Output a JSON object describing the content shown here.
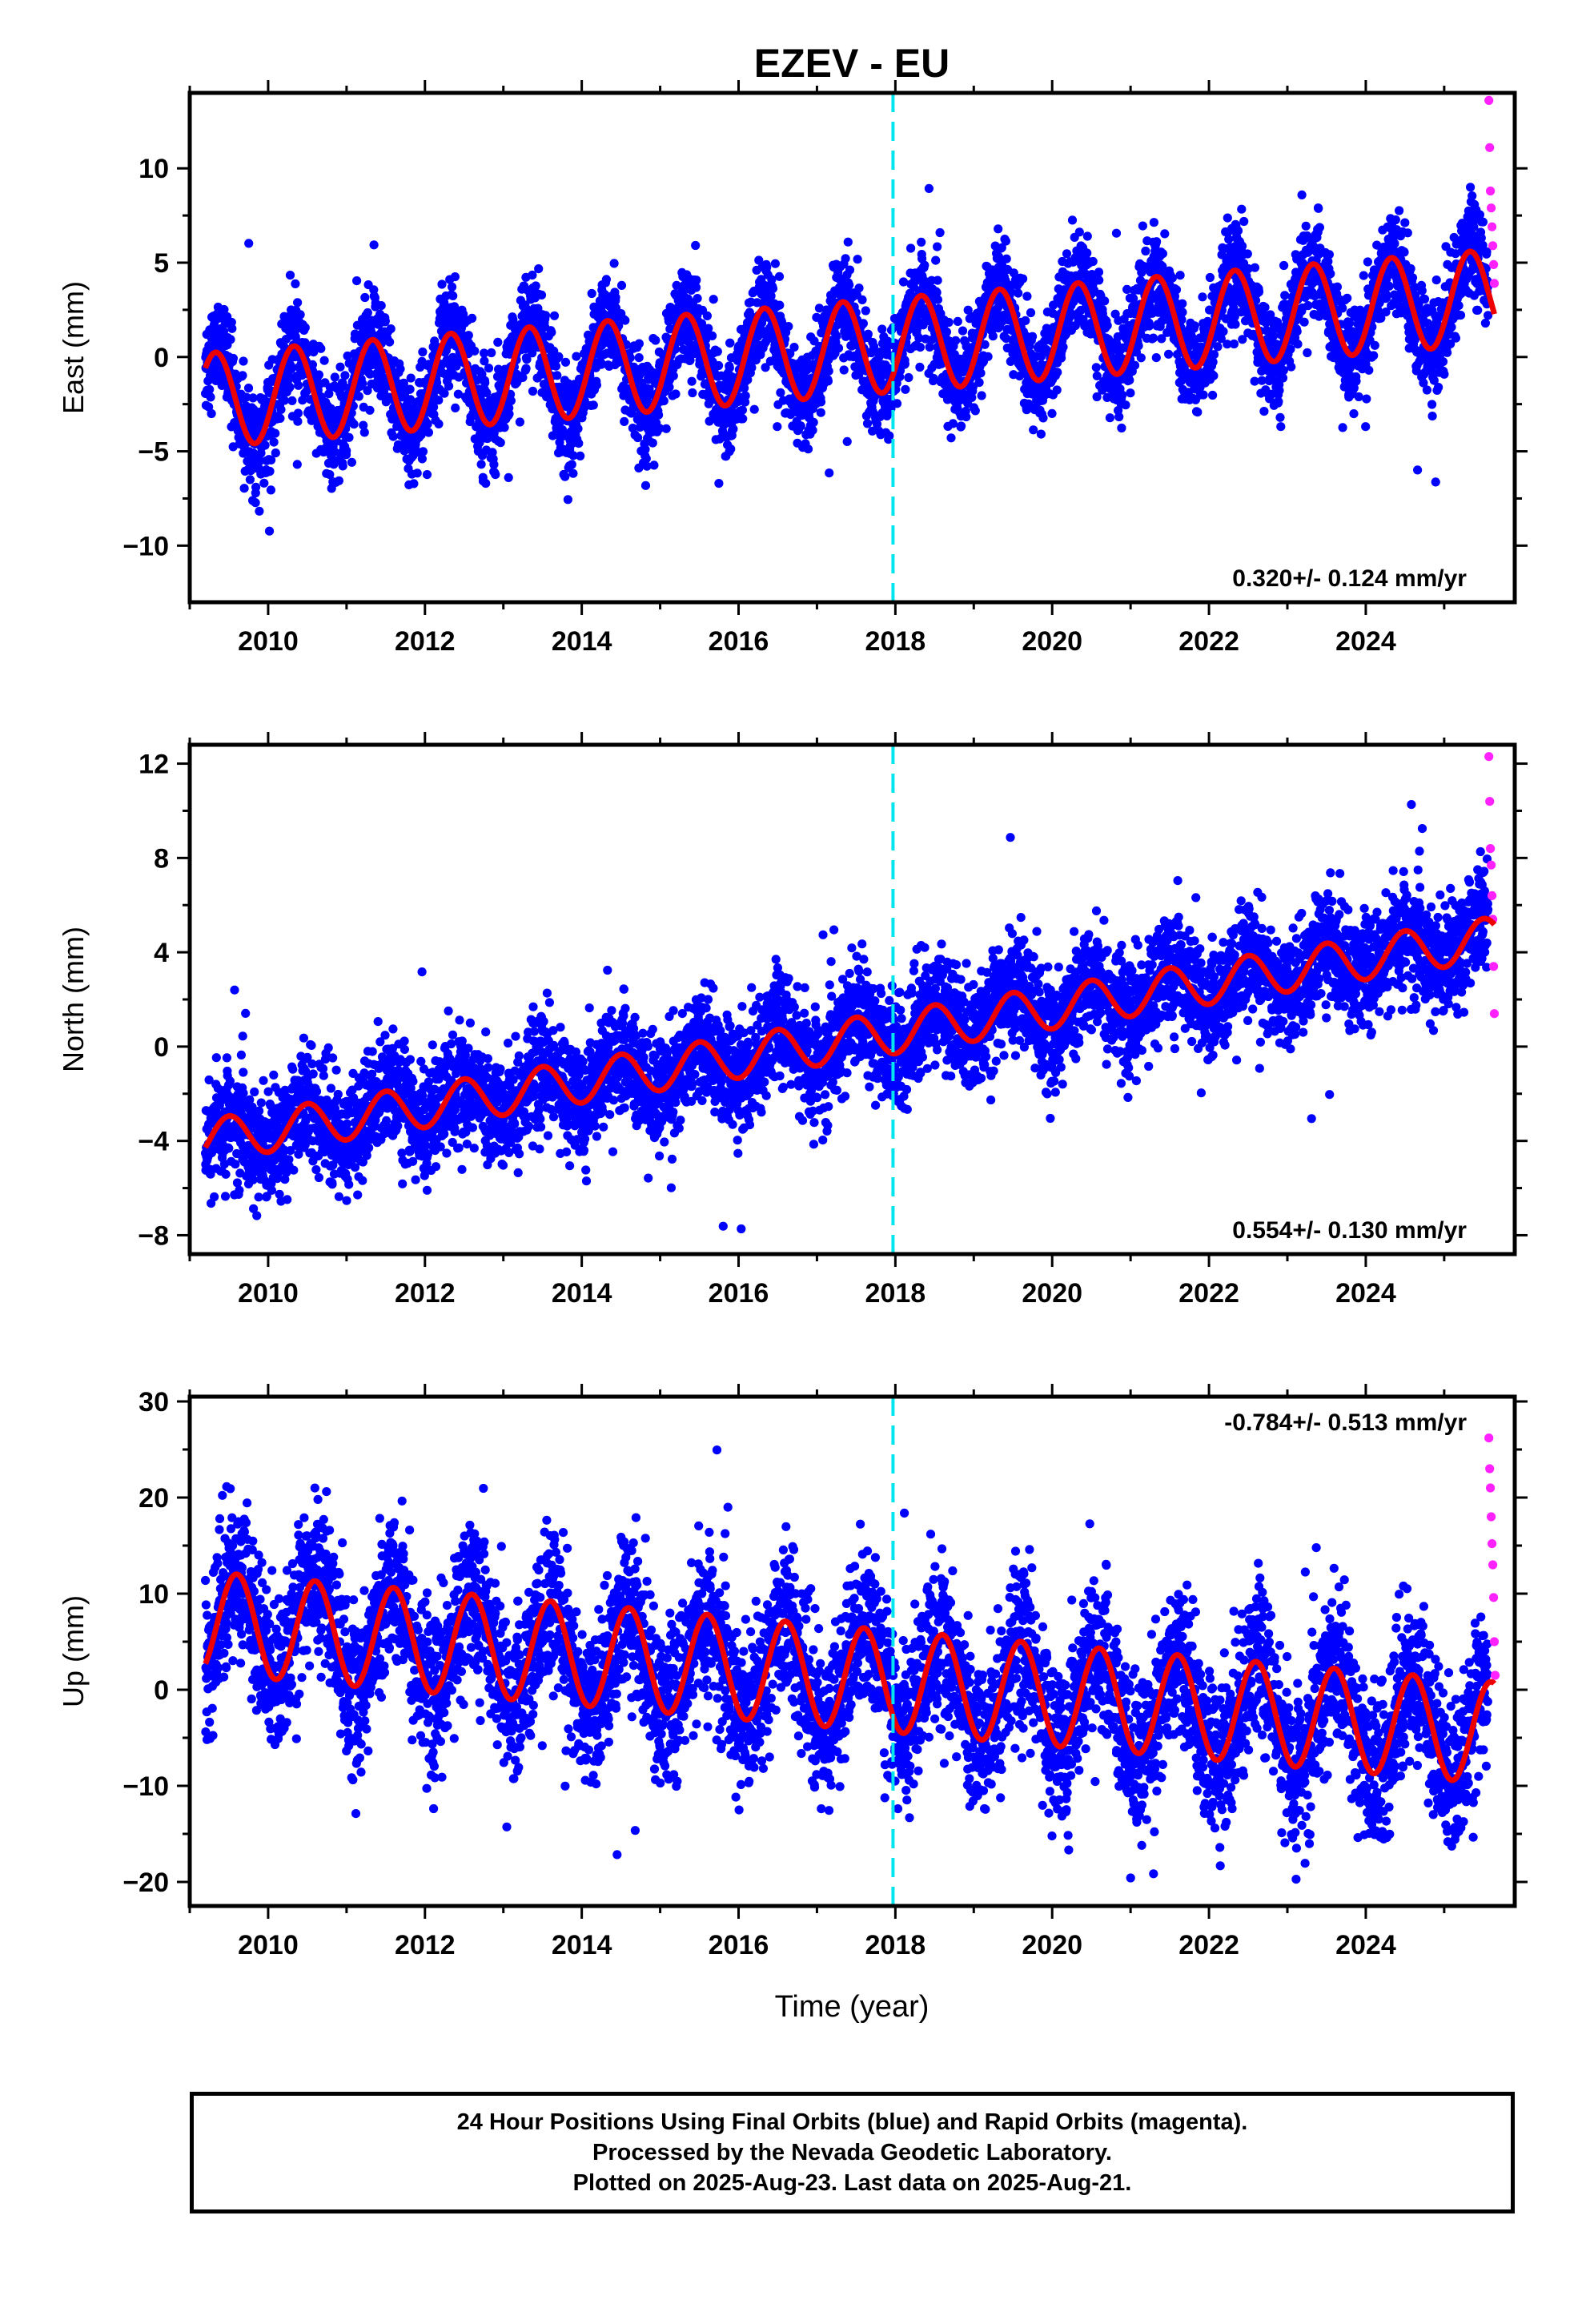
{
  "figure": {
    "title": "EZEV - EU",
    "caption_lines": [
      "24 Hour Positions Using Final Orbits (blue) and Rapid Orbits (magenta).",
      "Processed by the Nevada Geodetic Laboratory.",
      "Plotted on 2025-Aug-23. Last data on 2025-Aug-21."
    ],
    "xlabel": "Time (year)",
    "colors": {
      "final": "#0000ff",
      "rapid": "#ff22ff",
      "model": "#ee0000",
      "event": "#00e5ee"
    }
  },
  "chart_data": [
    {
      "type": "scatter",
      "name": "east",
      "ylabel": "East (mm)",
      "xlim": [
        2009.0,
        2025.9
      ],
      "ylim": [
        -13,
        14
      ],
      "yticks": [
        -10,
        -5,
        0,
        5,
        10
      ],
      "ytick_labels": [
        "−10",
        "−5",
        "0",
        "5",
        "10"
      ],
      "xticks": [
        2010,
        2012,
        2014,
        2016,
        2018,
        2020,
        2022,
        2024
      ],
      "xtick_labels": [
        "2010",
        "2012",
        "2014",
        "2016",
        "2018",
        "2020",
        "2022",
        "2024"
      ],
      "rate_label": "0.320+/- 0.124 mm/yr",
      "rate_position": "bottom-right",
      "event_line_x": 2017.97,
      "series": {
        "final_orbits": {
          "x_start": 2009.2,
          "x_end": 2025.56,
          "trend_start": -2.3,
          "trend_end": 3.2,
          "seasonal_amplitude": 2.5,
          "phase_year": 2009.33,
          "noise_sd": 1.3
        },
        "rapid_orbits": {
          "x": [
            2025.57,
            2025.58,
            2025.59,
            2025.6,
            2025.61,
            2025.62,
            2025.63,
            2025.64
          ],
          "y": [
            13.6,
            11.1,
            8.8,
            7.9,
            6.9,
            5.9,
            4.9,
            3.9
          ]
        },
        "model": {
          "x_start": 2009.2,
          "x_end": 2025.64,
          "trend_start": -2.3,
          "trend_end": 3.2,
          "seasonal_amplitude": 2.5,
          "phase_year": 2009.33
        }
      }
    },
    {
      "type": "scatter",
      "name": "north",
      "ylabel": "North (mm)",
      "xlim": [
        2009.0,
        2025.9
      ],
      "ylim": [
        -8.8,
        12.8
      ],
      "yticks": [
        -8,
        -4,
        0,
        4,
        8,
        12
      ],
      "ytick_labels": [
        "−8",
        "−4",
        "0",
        "4",
        "8",
        "12"
      ],
      "xticks": [
        2010,
        2012,
        2014,
        2016,
        2018,
        2020,
        2022,
        2024
      ],
      "xtick_labels": [
        "2010",
        "2012",
        "2014",
        "2016",
        "2018",
        "2020",
        "2022",
        "2024"
      ],
      "rate_label": "0.554+/- 0.130 mm/yr",
      "rate_position": "bottom-right",
      "event_line_x": 2017.97,
      "series": {
        "final_orbits": {
          "x_start": 2009.2,
          "x_end": 2025.56,
          "trend_start": -4.0,
          "trend_end": 4.6,
          "seasonal_amplitude": 0.9,
          "phase_year": 2009.5,
          "noise_sd": 1.15
        },
        "rapid_orbits": {
          "x": [
            2025.57,
            2025.58,
            2025.59,
            2025.6,
            2025.61,
            2025.62,
            2025.63,
            2025.64
          ],
          "y": [
            12.3,
            10.4,
            8.4,
            7.7,
            6.4,
            5.4,
            3.4,
            1.4
          ]
        },
        "model": {
          "x_start": 2009.2,
          "x_end": 2025.64,
          "trend_start": -4.0,
          "trend_end": 4.6,
          "seasonal_amplitude": 0.9,
          "phase_year": 2009.5
        }
      }
    },
    {
      "type": "scatter",
      "name": "up",
      "ylabel": "Up (mm)",
      "xlim": [
        2009.0,
        2025.9
      ],
      "ylim": [
        -22.5,
        30.5
      ],
      "yticks": [
        -20,
        -10,
        0,
        10,
        20,
        30
      ],
      "ytick_labels": [
        "−20",
        "−10",
        "0",
        "10",
        "20",
        "30"
      ],
      "xticks": [
        2010,
        2012,
        2014,
        2016,
        2018,
        2020,
        2022,
        2024
      ],
      "xtick_labels": [
        "2010",
        "2012",
        "2014",
        "2016",
        "2018",
        "2020",
        "2022",
        "2024"
      ],
      "rate_label": "-0.784+/- 0.513 mm/yr",
      "rate_position": "top-right",
      "event_line_x": 2017.97,
      "series": {
        "final_orbits": {
          "x_start": 2009.2,
          "x_end": 2025.56,
          "trend_start": 7.0,
          "trend_end": -4.5,
          "seasonal_amplitude": 5.3,
          "phase_year": 2009.6,
          "noise_sd": 4.0
        },
        "rapid_orbits": {
          "x": [
            2025.57,
            2025.58,
            2025.59,
            2025.6,
            2025.61,
            2025.62,
            2025.63,
            2025.64,
            2025.65
          ],
          "y": [
            26.2,
            23.0,
            21.0,
            18.0,
            15.2,
            13.0,
            9.6,
            5.0,
            1.5
          ]
        },
        "model": {
          "x_start": 2009.2,
          "x_end": 2025.64,
          "trend_start": 7.0,
          "trend_end": -4.5,
          "seasonal_amplitude": 5.3,
          "phase_year": 2009.6
        }
      }
    }
  ]
}
